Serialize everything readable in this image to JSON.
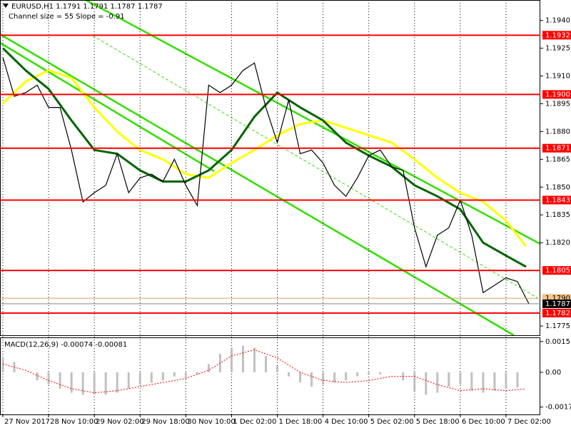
{
  "chart_data": {
    "type": "line",
    "title": "EURUSD,H1  1.1791 1.1791 1.1787 1.1787",
    "subtitle": "Channel size = 55 Slope = -0.91",
    "xlim": [
      -1,
      188
    ],
    "xticks": [
      {
        "value": 0,
        "label": "27 Nov 2017"
      },
      {
        "value": 16,
        "label": "28 Nov 10:00"
      },
      {
        "value": 32,
        "label": "29 Nov 02:00"
      },
      {
        "value": 48,
        "label": "29 Nov 18:00"
      },
      {
        "value": 64,
        "label": "30 Nov 10:00"
      },
      {
        "value": 80,
        "label": "1 Dec 02:00"
      },
      {
        "value": 96,
        "label": "1 Dec 18:00"
      },
      {
        "value": 112,
        "label": "4 Dec 10:00"
      },
      {
        "value": 128,
        "label": "5 Dec 02:00"
      },
      {
        "value": 144,
        "label": "5 Dec 18:00"
      },
      {
        "value": 160,
        "label": "6 Dec 10:00"
      },
      {
        "value": 176,
        "label": "7 Dec 02:00"
      }
    ],
    "ylim": [
      1.177,
      1.1951
    ],
    "yticks": [
      {
        "value": 1.194,
        "label": "1.1940"
      },
      1.1925,
      {
        "value": 1.191,
        "label": "1.1910"
      },
      1.1895,
      {
        "value": 1.188,
        "label": "1.1880"
      },
      1.1865,
      {
        "value": 1.185,
        "label": "1.1850"
      },
      1.1835,
      {
        "value": 1.182,
        "label": "1.1820"
      },
      1.1775
    ],
    "series": [
      {
        "color": "#000000",
        "x": [
          0,
          4,
          8,
          12,
          16,
          20,
          24,
          28,
          32,
          36,
          40,
          44,
          48,
          52,
          56,
          60,
          64,
          68,
          72,
          76,
          80,
          84,
          88,
          92,
          96,
          100,
          104,
          108,
          112,
          116,
          120,
          124,
          128,
          132,
          136,
          140,
          144,
          148,
          152,
          156,
          160,
          164,
          168,
          172,
          176,
          180,
          184
        ],
        "values": [
          1.192,
          1.1899,
          1.1901,
          1.1905,
          1.1893,
          1.1893,
          1.187,
          1.1842,
          1.1847,
          1.1851,
          1.1868,
          1.1847,
          1.1855,
          1.1857,
          1.1853,
          1.1865,
          1.1851,
          1.184,
          1.1905,
          1.1901,
          1.1905,
          1.1913,
          1.1917,
          1.1893,
          1.1874,
          1.1897,
          1.1868,
          1.187,
          1.1863,
          1.1851,
          1.1845,
          1.1855,
          1.1867,
          1.187,
          1.1861,
          1.1859,
          1.1828,
          1.1807,
          1.1824,
          1.1828,
          1.1843,
          1.1824,
          1.1793,
          1.1797,
          1.1801,
          1.1799,
          1.1787
        ]
      },
      {
        "color": "#006400",
        "x": [
          0,
          8,
          16,
          24,
          32,
          40,
          48,
          56,
          64,
          72,
          80,
          88,
          96,
          104,
          112,
          120,
          128,
          136,
          144,
          152,
          160,
          168,
          176,
          183
        ],
        "values": [
          1.1925,
          1.1913,
          1.1903,
          1.1886,
          1.187,
          1.1868,
          1.1859,
          1.1853,
          1.1853,
          1.1859,
          1.187,
          1.1888,
          1.1901,
          1.1893,
          1.1886,
          1.1874,
          1.1867,
          1.1861,
          1.1851,
          1.1845,
          1.1838,
          1.182,
          1.1813,
          1.1807
        ]
      },
      {
        "color": "#ffff00",
        "x": [
          0,
          8,
          16,
          24,
          32,
          40,
          48,
          56,
          64,
          72,
          80,
          88,
          96,
          104,
          112,
          120,
          128,
          136,
          144,
          152,
          160,
          168,
          176,
          183
        ],
        "values": [
          1.1895,
          1.1907,
          1.1913,
          1.1909,
          1.1893,
          1.188,
          1.187,
          1.1865,
          1.1857,
          1.1855,
          1.1863,
          1.187,
          1.1878,
          1.1884,
          1.1886,
          1.1882,
          1.1878,
          1.1874,
          1.1865,
          1.1855,
          1.1847,
          1.1842,
          1.1832,
          1.1818
        ]
      }
    ],
    "levels": {
      "color": "#ff0000",
      "values": [
        1.1932,
        {
          "value": 1.19,
          "label": "1.1900"
        },
        1.1871,
        1.1843,
        1.1805,
        1.1782
      ]
    },
    "price_marks": [
      {
        "value": 1.179,
        "label": "1.1790"
      },
      1.1787
    ],
    "macd": {
      "label": "MACD(12,26,9) -0.00074 -0.00081",
      "ylim": [
        -0.00206,
        0.00167
      ],
      "yticks": [
        0.0015,
        {
          "value": 0,
          "label": "0.00"
        },
        -0.0017
      ],
      "histogram": {
        "color": "#c0c0c0",
        "x": [
          0,
          4,
          8,
          12,
          16,
          20,
          24,
          28,
          32,
          36,
          40,
          44,
          48,
          52,
          56,
          60,
          64,
          68,
          72,
          76,
          80,
          84,
          88,
          92,
          96,
          100,
          104,
          108,
          112,
          116,
          120,
          124,
          128,
          132,
          136,
          140,
          144,
          148,
          152,
          156,
          160,
          164,
          168,
          172,
          176,
          180
        ],
        "values": [
          0.0007,
          0.0005,
          0.0,
          -0.0004,
          -0.0006,
          -0.0008,
          -0.001,
          -0.0011,
          -0.0011,
          -0.0011,
          -0.001,
          -0.0008,
          -0.0006,
          -0.0005,
          -0.0004,
          -0.0002,
          -0.0003,
          -0.0001,
          0.0004,
          0.0009,
          0.0012,
          0.0013,
          0.0012,
          0.0008,
          0.0003,
          -0.0002,
          -0.0005,
          -0.0007,
          -0.0006,
          -0.0005,
          -0.0004,
          -0.0002,
          -0.0001,
          -0.0001,
          0.0,
          -0.0004,
          -0.0009,
          -0.0011,
          -0.001,
          -0.0007,
          -0.0006,
          -0.0009,
          -0.001,
          -0.0009,
          -0.0008,
          -0.00074
        ]
      },
      "signal": {
        "color": "#ff0000",
        "x": [
          0,
          8,
          16,
          24,
          32,
          40,
          48,
          56,
          64,
          72,
          80,
          88,
          96,
          104,
          112,
          120,
          128,
          136,
          144,
          152,
          160,
          168,
          176,
          183
        ],
        "values": [
          0.0004,
          0.0001,
          -0.0004,
          -0.0008,
          -0.001,
          -0.0009,
          -0.0007,
          -0.0005,
          -0.0003,
          0.0001,
          0.0008,
          0.0011,
          0.0007,
          0.0,
          -0.0004,
          -0.0005,
          -0.0004,
          -0.0002,
          -0.0002,
          -0.0006,
          -0.0009,
          -0.0008,
          -0.0009,
          -0.00081
        ]
      }
    }
  }
}
